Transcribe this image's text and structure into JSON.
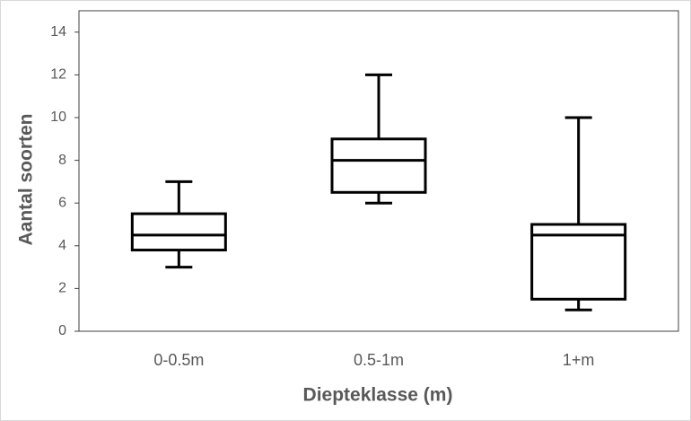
{
  "chart_data": {
    "type": "box",
    "x_label": "Diepteklasse (m)",
    "y_label": "Aantal soorten",
    "categories": [
      "0-0.5m",
      "0.5-1m",
      "1+m"
    ],
    "boxes": [
      {
        "min": 3,
        "q1": 3.8,
        "median": 4.5,
        "q3": 5.5,
        "max": 7
      },
      {
        "min": 6,
        "q1": 6.5,
        "median": 8,
        "q3": 9,
        "max": 12
      },
      {
        "min": 1,
        "q1": 1.5,
        "median": 4.5,
        "q3": 5,
        "max": 10
      }
    ],
    "color": "#000000",
    "ylim": [
      0,
      15
    ],
    "yticks": [
      0,
      2,
      4,
      6,
      8,
      10,
      12,
      14
    ]
  }
}
